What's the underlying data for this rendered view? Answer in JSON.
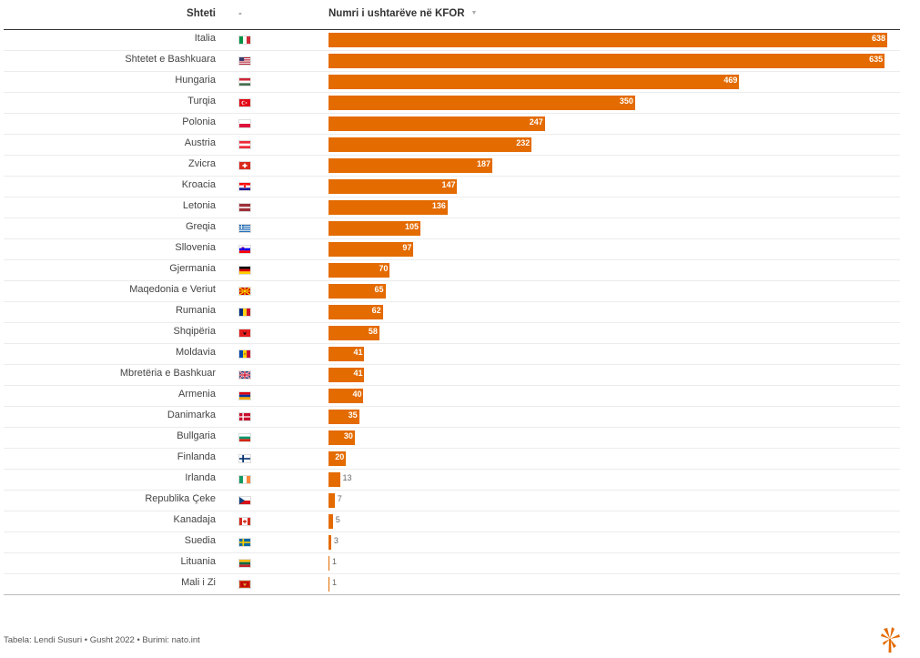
{
  "header": {
    "country_col": "Shteti",
    "flag_col": "-",
    "value_col": "Numri i ushtarëve në KFOR",
    "sort_icon": "sort-down-icon"
  },
  "colors": {
    "bar": "#e46b00"
  },
  "chart_data": {
    "type": "bar",
    "orientation": "horizontal",
    "title": "",
    "xlabel": "Numri i ushtarëve në KFOR",
    "ylabel": "Shteti",
    "xlim": [
      0,
      638
    ],
    "categories": [
      "Italia",
      "Shtetet e Bashkuara",
      "Hungaria",
      "Turqia",
      "Polonia",
      "Austria",
      "Zvicra",
      "Kroacia",
      "Letonia",
      "Greqia",
      "Sllovenia",
      "Gjermania",
      "Maqedonia e Veriut",
      "Rumania",
      "Shqipëria",
      "Moldavia",
      "Mbretëria e Bashkuar",
      "Armenia",
      "Danimarka",
      "Bullgaria",
      "Finlanda",
      "Irlanda",
      "Republika Çeke",
      "Kanadaja",
      "Suedia",
      "Lituania",
      "Mali i Zi"
    ],
    "values": [
      638,
      635,
      469,
      350,
      247,
      232,
      187,
      147,
      136,
      105,
      97,
      70,
      65,
      62,
      58,
      41,
      41,
      40,
      35,
      30,
      20,
      13,
      7,
      5,
      3,
      1,
      1
    ],
    "flag_icons": [
      "italy-flag-icon",
      "usa-flag-icon",
      "hungary-flag-icon",
      "turkey-flag-icon",
      "poland-flag-icon",
      "austria-flag-icon",
      "switzerland-flag-icon",
      "croatia-flag-icon",
      "latvia-flag-icon",
      "greece-flag-icon",
      "slovenia-flag-icon",
      "germany-flag-icon",
      "north-macedonia-flag-icon",
      "romania-flag-icon",
      "albania-flag-icon",
      "moldova-flag-icon",
      "uk-flag-icon",
      "armenia-flag-icon",
      "denmark-flag-icon",
      "bulgaria-flag-icon",
      "finland-flag-icon",
      "ireland-flag-icon",
      "czechia-flag-icon",
      "canada-flag-icon",
      "sweden-flag-icon",
      "lithuania-flag-icon",
      "montenegro-flag-icon"
    ]
  },
  "footer": {
    "text": "Tabela: Lendi Susuri • Gusht 2022 • Burimi: nato.int",
    "logo_icon": "rfe-rl-logo-icon"
  }
}
